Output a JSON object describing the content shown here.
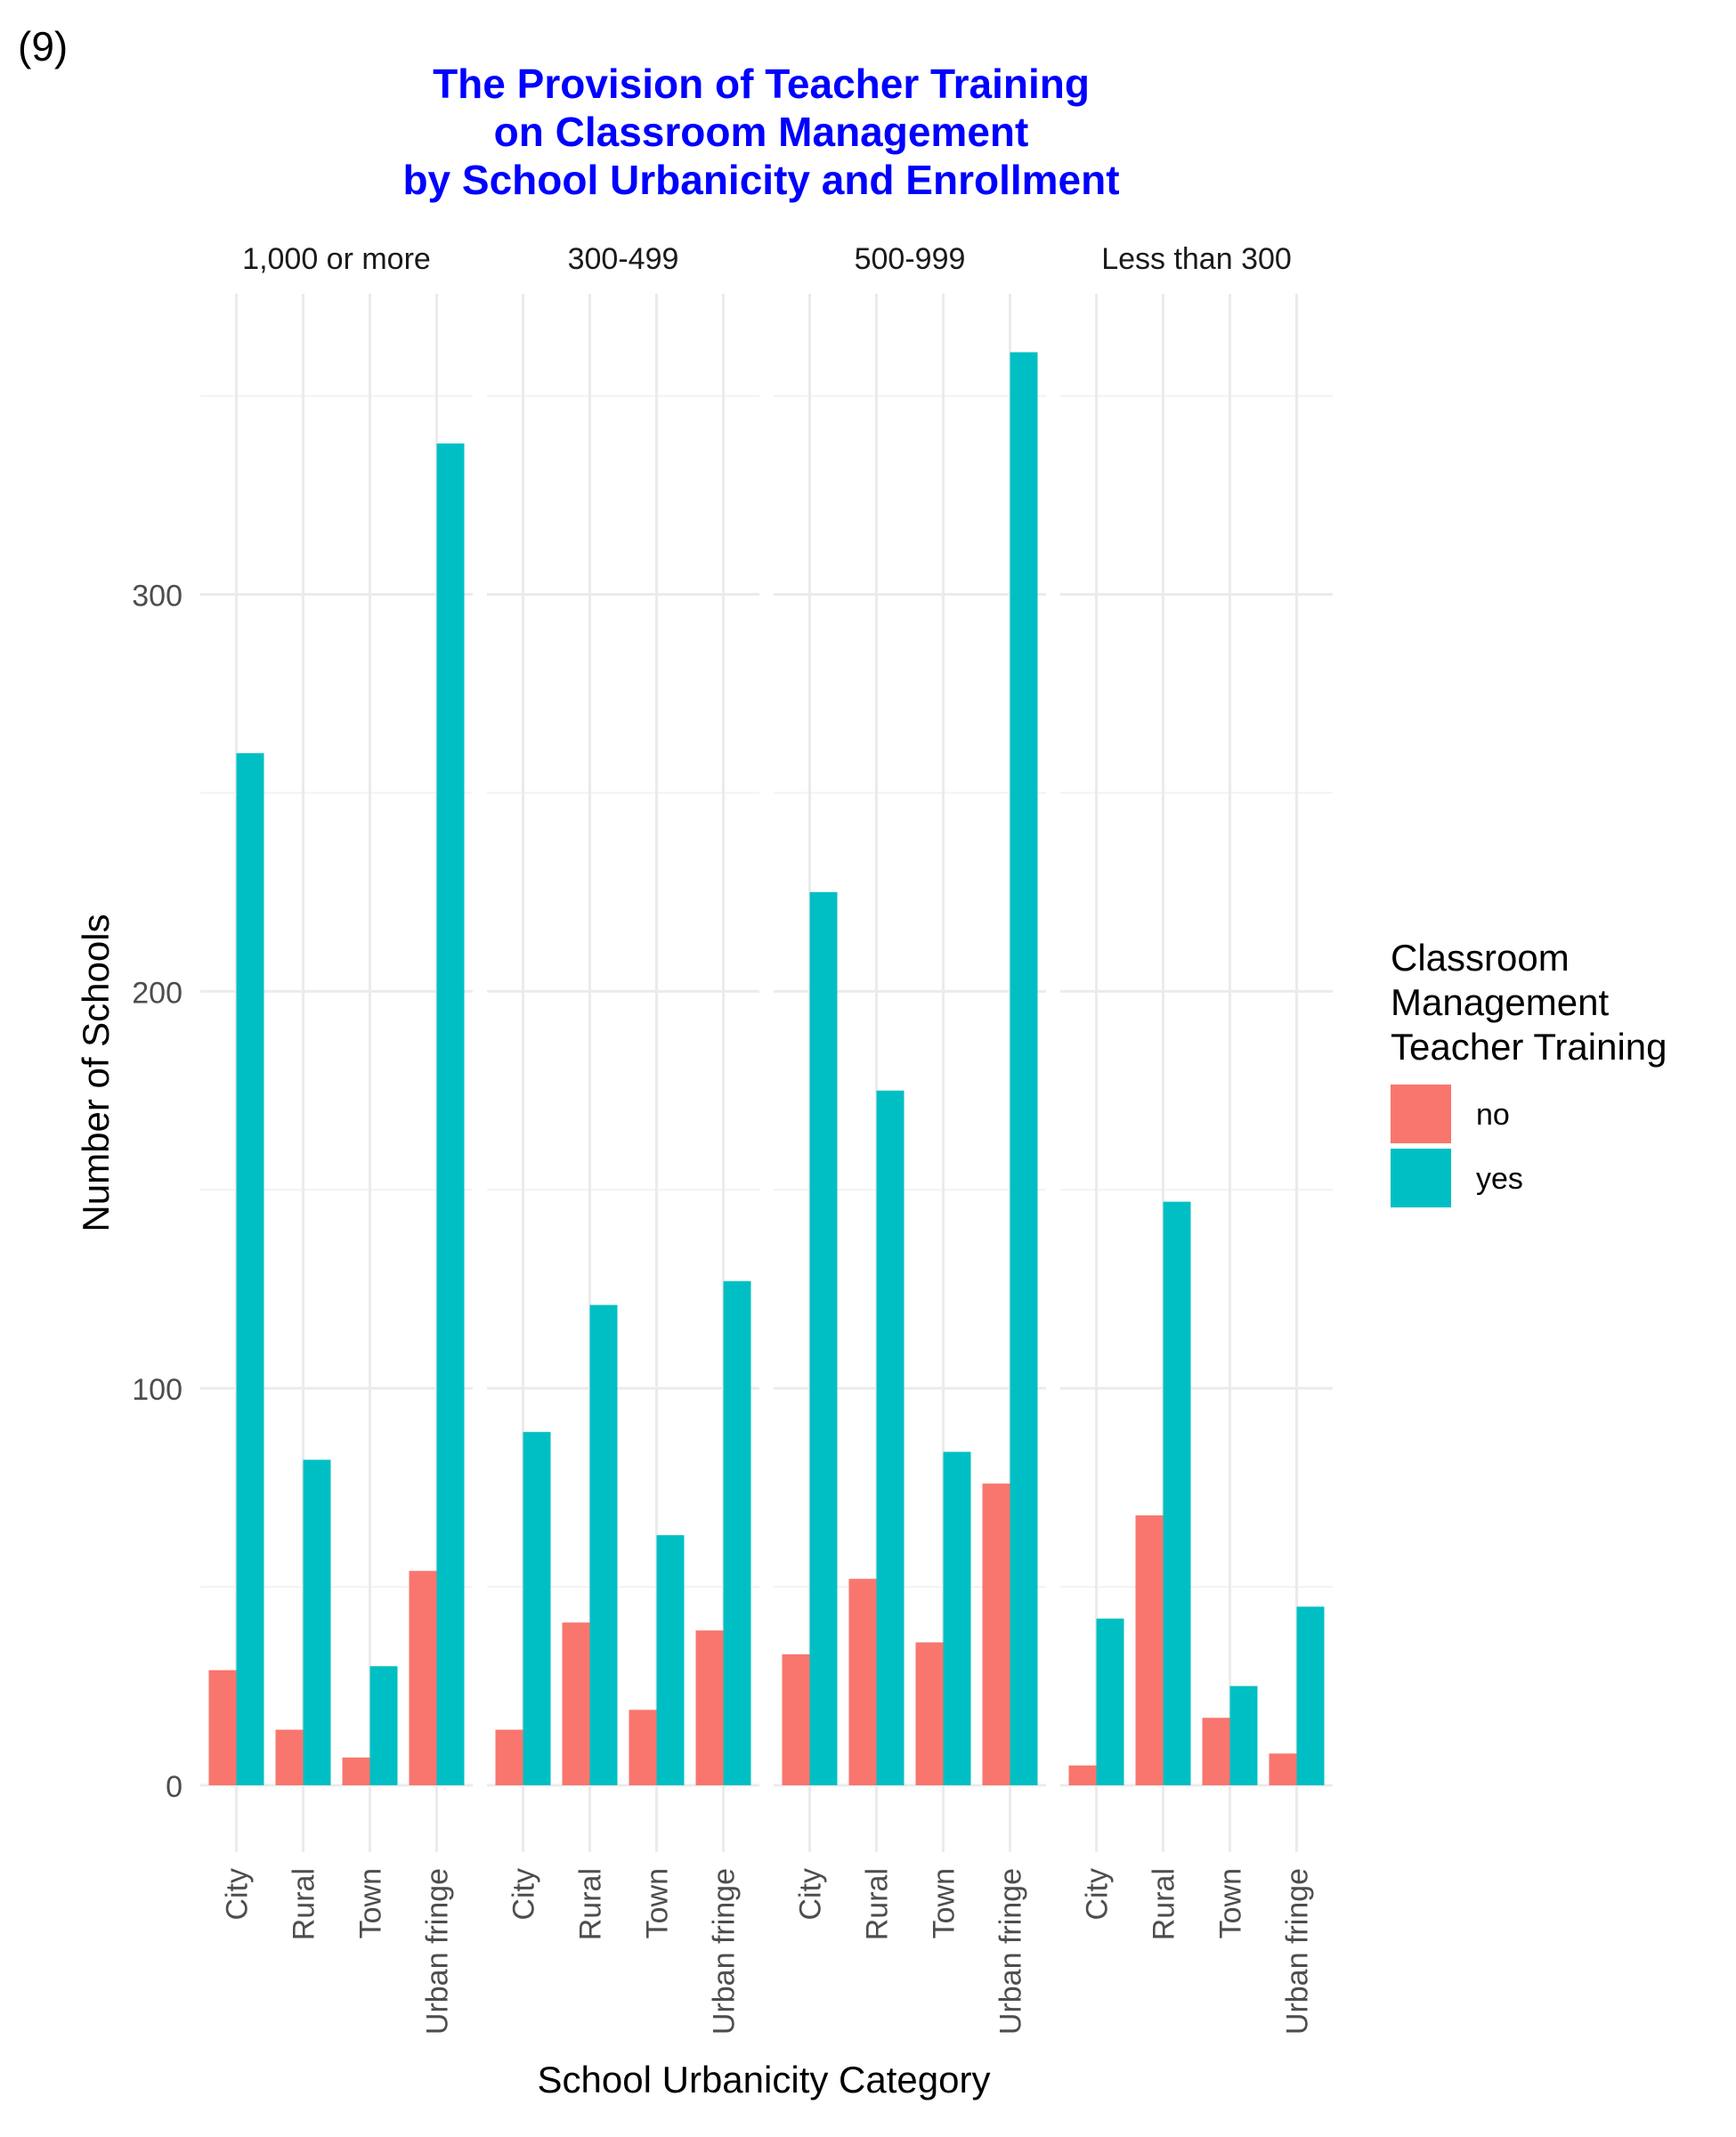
{
  "figure_label": "(9)",
  "chart_data": {
    "type": "bar",
    "title": "The Provision of Teacher Training\non Classroom Management\nby School Urbanicity and Enrollment",
    "xlabel": "School Urbanicity Category",
    "ylabel": "Number of Schools",
    "ylim": [
      0,
      360
    ],
    "yticks": [
      0,
      100,
      200,
      300
    ],
    "grid": true,
    "title_color": "#0000FF",
    "categories": [
      "City",
      "Rural",
      "Town",
      "Urban fringe"
    ],
    "series": [
      {
        "name": "no",
        "color": "#F8766D"
      },
      {
        "name": "yes",
        "color": "#00BFC4"
      }
    ],
    "facets": [
      {
        "label": "1,000 or more",
        "values": {
          "no": [
            29,
            14,
            7,
            54
          ],
          "yes": [
            260,
            82,
            30,
            338
          ]
        }
      },
      {
        "label": "300-499",
        "values": {
          "no": [
            14,
            41,
            19,
            39
          ],
          "yes": [
            89,
            121,
            63,
            127
          ]
        }
      },
      {
        "label": "500-999",
        "values": {
          "no": [
            33,
            52,
            36,
            76
          ],
          "yes": [
            225,
            175,
            84,
            361
          ]
        }
      },
      {
        "label": "Less than 300",
        "values": {
          "no": [
            5,
            68,
            17,
            8
          ],
          "yes": [
            42,
            147,
            25,
            45
          ]
        }
      }
    ],
    "legend": {
      "title": "Classroom\nManagement\nTeacher Training",
      "position": "right"
    }
  }
}
